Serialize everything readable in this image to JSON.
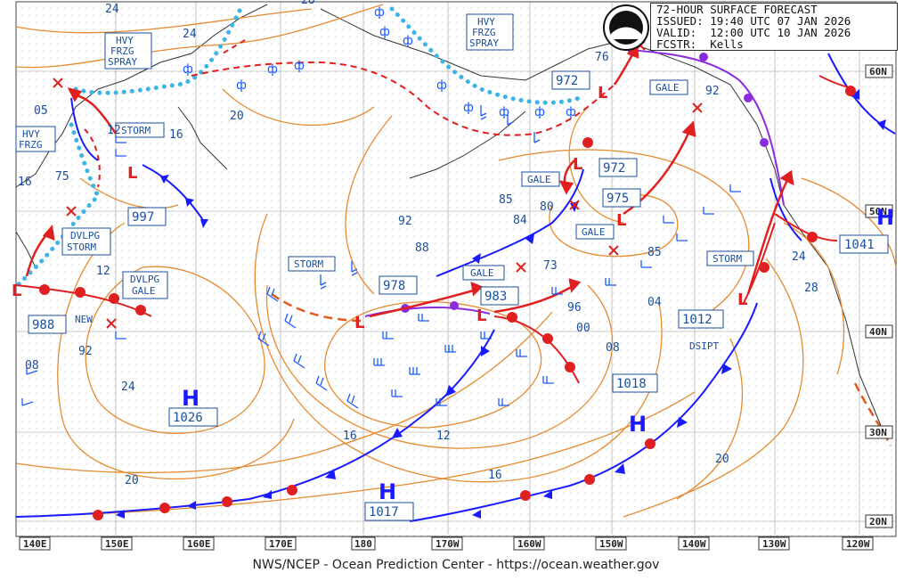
{
  "header": {
    "line1": "72-HOUR SURFACE FORECAST",
    "line2": "ISSUED: 19:40 UTC 07 JAN 2026",
    "line3": "VALID:  12:00 UTC 10 JAN 2026",
    "line4": "FCSTR:  Kells",
    "logo_text": "NOAA"
  },
  "footer": "NWS/NCEP - Ocean Prediction Center - https://ocean.weather.gov",
  "lon_labels": [
    "140E",
    "150E",
    "160E",
    "170E",
    "180",
    "170W",
    "160W",
    "150W",
    "140W",
    "130W",
    "120W"
  ],
  "lat_labels": [
    "60N",
    "50N",
    "40N",
    "30N",
    "20N"
  ],
  "warnings": [
    {
      "text": "HVY\nFRZG\nSPRAY",
      "id": "hvy1"
    },
    {
      "text": "HVY\nFRZG\nSPRAY",
      "id": "hvy2"
    },
    {
      "text": "HVY\nFRZG",
      "id": "hvy3"
    },
    {
      "text": "STORM",
      "id": "storm1"
    },
    {
      "text": "DVLPG\nSTORM",
      "id": "dvlpg1"
    },
    {
      "text": "DVLPG\nGALE",
      "id": "dvlpg2"
    },
    {
      "text": "STORM",
      "id": "storm2"
    },
    {
      "text": "GALE",
      "id": "gale1"
    },
    {
      "text": "GALE",
      "id": "gale2"
    },
    {
      "text": "GALE",
      "id": "gale3"
    },
    {
      "text": "GALE",
      "id": "gale4"
    },
    {
      "text": "STORM",
      "id": "storm3"
    }
  ],
  "pressure_centers": [
    {
      "letter": "H",
      "value": "1026"
    },
    {
      "letter": "H",
      "value": "1017"
    },
    {
      "letter": "H",
      "value": ""
    },
    {
      "letter": "H",
      "value": "1041"
    }
  ],
  "low_values": [
    "988",
    "997",
    "978",
    "983",
    "972",
    "972",
    "975",
    "1012",
    "1018"
  ],
  "isobar_labels": [
    "24",
    "24",
    "28",
    "12",
    "16",
    "20",
    "05",
    "75",
    "16",
    "12",
    "08",
    "92",
    "92",
    "88",
    "85",
    "84",
    "80",
    "73",
    "85",
    "96",
    "00",
    "04",
    "08",
    "12",
    "16",
    "20",
    "24",
    "28",
    "92",
    "76",
    "24",
    "20",
    "16"
  ],
  "annotations": {
    "new": "NEW",
    "dsipt": "DSIPT"
  }
}
